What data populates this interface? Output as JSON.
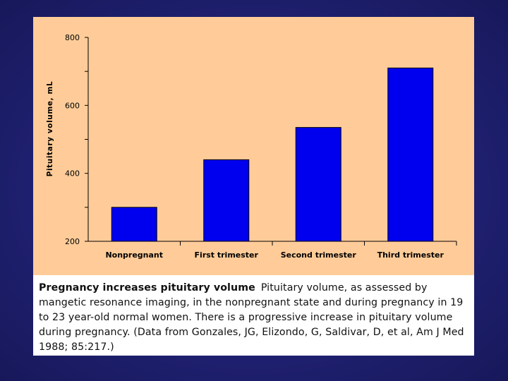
{
  "chart_data": {
    "type": "bar",
    "categories": [
      "Nonpregnant",
      "First trimester",
      "Second trimester",
      "Third trimester"
    ],
    "values": [
      300,
      440,
      535,
      710
    ],
    "ylabel": "Pituitary volume, mL",
    "xlabel": "",
    "ylim": [
      200,
      800
    ],
    "yticks": [
      200,
      400,
      600,
      800
    ],
    "ytick_labels": [
      "200",
      "400",
      "600",
      "800"
    ],
    "bar_color": "#0000ee"
  },
  "caption": {
    "title": "Pregnancy increases pituitary volume",
    "body": "Pituitary volume, as assessed by mangetic resonance imaging, in the nonpregnant state and during pregnancy in 19 to 23 year-old normal women. There is a progressive increase in pituitary volume during pregnancy. (Data from Gonzales, JG, Elizondo, G, Saldivar, D, et al, Am J Med 1988; 85:217.)"
  }
}
